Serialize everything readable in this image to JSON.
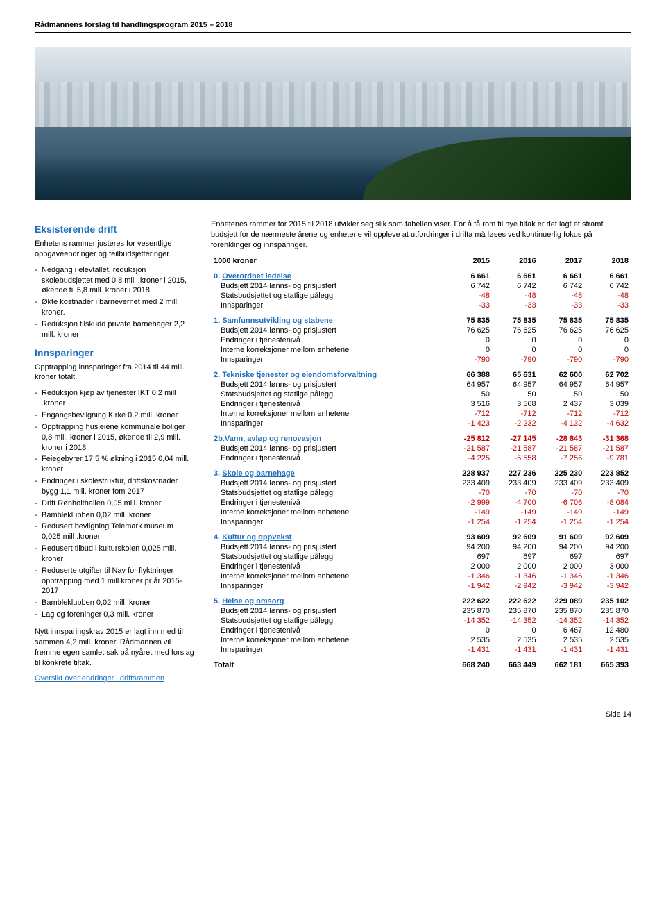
{
  "header": {
    "title": "Rådmannens forslag til handlingsprogram 2015 – 2018"
  },
  "left": {
    "h1": "Eksisterende drift",
    "p1": "Enhetens rammer justeres for vesentlige oppgaveendringer og feilbudsjetteringer.",
    "list1": [
      "Nedgang i elevtallet, reduksjon skolebudsjettet med 0,8 mill .kroner i 2015, økende til 5,8 mill. kroner i 2018.",
      "Økte kostnader i barnevernet med 2 mill. kroner.",
      "Reduksjon tilskudd private barnehager 2,2 mill. kroner"
    ],
    "h2": "Innsparinger",
    "p2": "Opptrapping innsparinger fra 2014 til 44 mill. kroner totalt.",
    "list2": [
      "Reduksjon kjøp av tjenester IKT 0,2 mill .kroner",
      "Engangsbevilgning Kirke 0,2 mill. kroner",
      "Opptrapping husleiene kommunale boliger 0,8 mill. kroner i 2015, økende til 2,9 mill. kroner i 2018",
      "Feiegebyrer 17,5 % økning i 2015 0,04 mill. kroner",
      "Endringer i skolestruktur, driftskostnader bygg 1,1  mill. kroner fom 2017",
      "Drift Rønholthallen 0,05 mill. kroner",
      "Bambleklubben 0,02 mill. kroner",
      "Redusert bevilgning Telemark museum 0,025 mill .kroner",
      "Redusert tilbud i kulturskolen 0,025 mill. kroner",
      "Reduserte utgifter til Nav for flyktninger opptrapping med 1 mill.kroner pr år 2015-2017",
      "Bambleklubben 0,02 mill. kroner",
      "Lag og foreninger 0,3 mill. kroner"
    ],
    "p3": "Nytt innsparingskrav 2015 er lagt inn med til sammen 4,2 mill. kroner. Rådmannen vil fremme egen samlet sak på nyåret med forslag til konkrete tiltak.",
    "link": "Oversikt over endringer i driftsrammen"
  },
  "right": {
    "intro": "Enhetenes rammer for 2015 til 2018 utvikler seg slik som tabellen viser. For å få rom til nye tiltak er det lagt et stramt budsjett for de nærmeste årene og enhetene vil oppleve at utfordringer i drifta må løses ved kontinuerlig fokus på forenklinger og innsparinger."
  },
  "table": {
    "header": [
      "1000 kroner",
      "2015",
      "2016",
      "2017",
      "2018"
    ],
    "sections": [
      {
        "title_pre": "0. ",
        "title_link": "Overordnet ledelse",
        "vals": [
          "6 661",
          "6 661",
          "6 661",
          "6 661"
        ],
        "rows": [
          {
            "label": "Budsjett 2014 lønns- og prisjustert",
            "v": [
              "6 742",
              "6 742",
              "6 742",
              "6 742"
            ]
          },
          {
            "label": "Statsbudsjettet og statlige pålegg",
            "v": [
              "-48",
              "-48",
              "-48",
              "-48"
            ],
            "neg": true
          },
          {
            "label": "Innsparinger",
            "v": [
              "-33",
              "-33",
              "-33",
              "-33"
            ],
            "neg": true
          }
        ]
      },
      {
        "title_pre": "1. ",
        "title_link": "Samfunnsutvikling",
        "title_post": " og ",
        "title_link2": "stabene",
        "vals": [
          "75 835",
          "75 835",
          "75 835",
          "75 835"
        ],
        "rows": [
          {
            "label": "Budsjett 2014 lønns- og prisjustert",
            "v": [
              "76 625",
              "76 625",
              "76 625",
              "76 625"
            ]
          },
          {
            "label": "Endringer i tjenestenivå",
            "v": [
              "0",
              "0",
              "0",
              "0"
            ]
          },
          {
            "label": "Interne korreksjoner mellom enhetene",
            "v": [
              "0",
              "0",
              "0",
              "0"
            ]
          },
          {
            "label": "Innsparinger",
            "v": [
              "-790",
              "-790",
              "-790",
              "-790"
            ],
            "neg": true
          }
        ]
      },
      {
        "title_pre": "2. ",
        "title_link": "Tekniske tjenester og eiendomsforvaltning",
        "vals": [
          "66 388",
          "65 631",
          "62 600",
          "62 702"
        ],
        "rows": [
          {
            "label": "Budsjett 2014 lønns- og prisjustert",
            "v": [
              "64 957",
              "64 957",
              "64 957",
              "64 957"
            ]
          },
          {
            "label": "Statsbudsjettet og statlige pålegg",
            "v": [
              "50",
              "50",
              "50",
              "50"
            ]
          },
          {
            "label": "Endringer i tjenestenivå",
            "v": [
              "3 516",
              "3 568",
              "2 437",
              "3 039"
            ]
          },
          {
            "label": "Interne korreksjoner mellom enhetene",
            "v": [
              "-712",
              "-712",
              "-712",
              "-712"
            ],
            "neg": true
          },
          {
            "label": "Innsparinger",
            "v": [
              "-1 423",
              "-2 232",
              "-4 132",
              "-4 632"
            ],
            "neg": true
          }
        ]
      },
      {
        "title_pre": "2b.",
        "title_link": "Vann, avløp og renovasjon",
        "vals": [
          "-25 812",
          "-27 145",
          "-28 843",
          "-31 368"
        ],
        "head_neg": true,
        "rows": [
          {
            "label": "Budsjett 2014 lønns- og prisjustert",
            "v": [
              "-21 587",
              "-21 587",
              "-21 587",
              "-21 587"
            ],
            "neg": true
          },
          {
            "label": "Endringer i tjenestenivå",
            "v": [
              "-4 225",
              "-5 558",
              "-7 256",
              "-9 781"
            ],
            "neg": true
          }
        ]
      },
      {
        "title_pre": "3. ",
        "title_link": "Skole og barnehage",
        "vals": [
          "228 937",
          "227 236",
          "225 230",
          "223 852"
        ],
        "rows": [
          {
            "label": "Budsjett 2014 lønns- og prisjustert",
            "v": [
              "233 409",
              "233 409",
              "233 409",
              "233 409"
            ]
          },
          {
            "label": "Statsbudsjettet og statlige pålegg",
            "v": [
              "-70",
              "-70",
              "-70",
              "-70"
            ],
            "neg": true
          },
          {
            "label": "Endringer i tjenestenivå",
            "v": [
              "-2 999",
              "-4 700",
              "-6 706",
              "-8 084"
            ],
            "neg": true
          },
          {
            "label": "Interne korreksjoner mellom enhetene",
            "v": [
              "-149",
              "-149",
              "-149",
              "-149"
            ],
            "neg": true
          },
          {
            "label": "Innsparinger",
            "v": [
              "-1 254",
              "-1 254",
              "-1 254",
              "-1 254"
            ],
            "neg": true
          }
        ]
      },
      {
        "title_pre": "4. ",
        "title_link": "Kultur og oppvekst",
        "vals": [
          "93 609",
          "92 609",
          "91 609",
          "92 609"
        ],
        "rows": [
          {
            "label": "Budsjett 2014 lønns- og prisjustert",
            "v": [
              "94 200",
              "94 200",
              "94 200",
              "94 200"
            ]
          },
          {
            "label": "Statsbudsjettet og statlige pålegg",
            "v": [
              "697",
              "697",
              "697",
              "697"
            ]
          },
          {
            "label": "Endringer i tjenestenivå",
            "v": [
              "2 000",
              "2 000",
              "2 000",
              "3 000"
            ]
          },
          {
            "label": "Interne korreksjoner mellom enhetene",
            "v": [
              "-1 346",
              "-1 346",
              "-1 346",
              "-1 346"
            ],
            "neg": true
          },
          {
            "label": "Innsparinger",
            "v": [
              "-1 942",
              "-2 942",
              "-3 942",
              "-3 942"
            ],
            "neg": true
          }
        ]
      },
      {
        "title_pre": "5. ",
        "title_link": "Helse og omsorg",
        "vals": [
          "222 622",
          "222 622",
          "229 089",
          "235 102"
        ],
        "rows": [
          {
            "label": "Budsjett 2014 lønns- og prisjustert",
            "v": [
              "235 870",
              "235 870",
              "235 870",
              "235 870"
            ]
          },
          {
            "label": "Statsbudsjettet og statlige pålegg",
            "v": [
              "-14 352",
              "-14 352",
              "-14 352",
              "-14 352"
            ],
            "neg": true
          },
          {
            "label": "Endringer i tjenestenivå",
            "v": [
              "0",
              "0",
              "6 467",
              "12 480"
            ]
          },
          {
            "label": "Interne korreksjoner mellom enhetene",
            "v": [
              "2 535",
              "2 535",
              "2 535",
              "2 535"
            ]
          },
          {
            "label": "Innsparinger",
            "v": [
              "-1 431",
              "-1 431",
              "-1 431",
              "-1 431"
            ],
            "neg": true
          }
        ]
      }
    ],
    "total": {
      "label": "Totalt",
      "v": [
        "668 240",
        "663 449",
        "662 181",
        "665 393"
      ]
    }
  },
  "footer": {
    "page": "Side 14"
  }
}
